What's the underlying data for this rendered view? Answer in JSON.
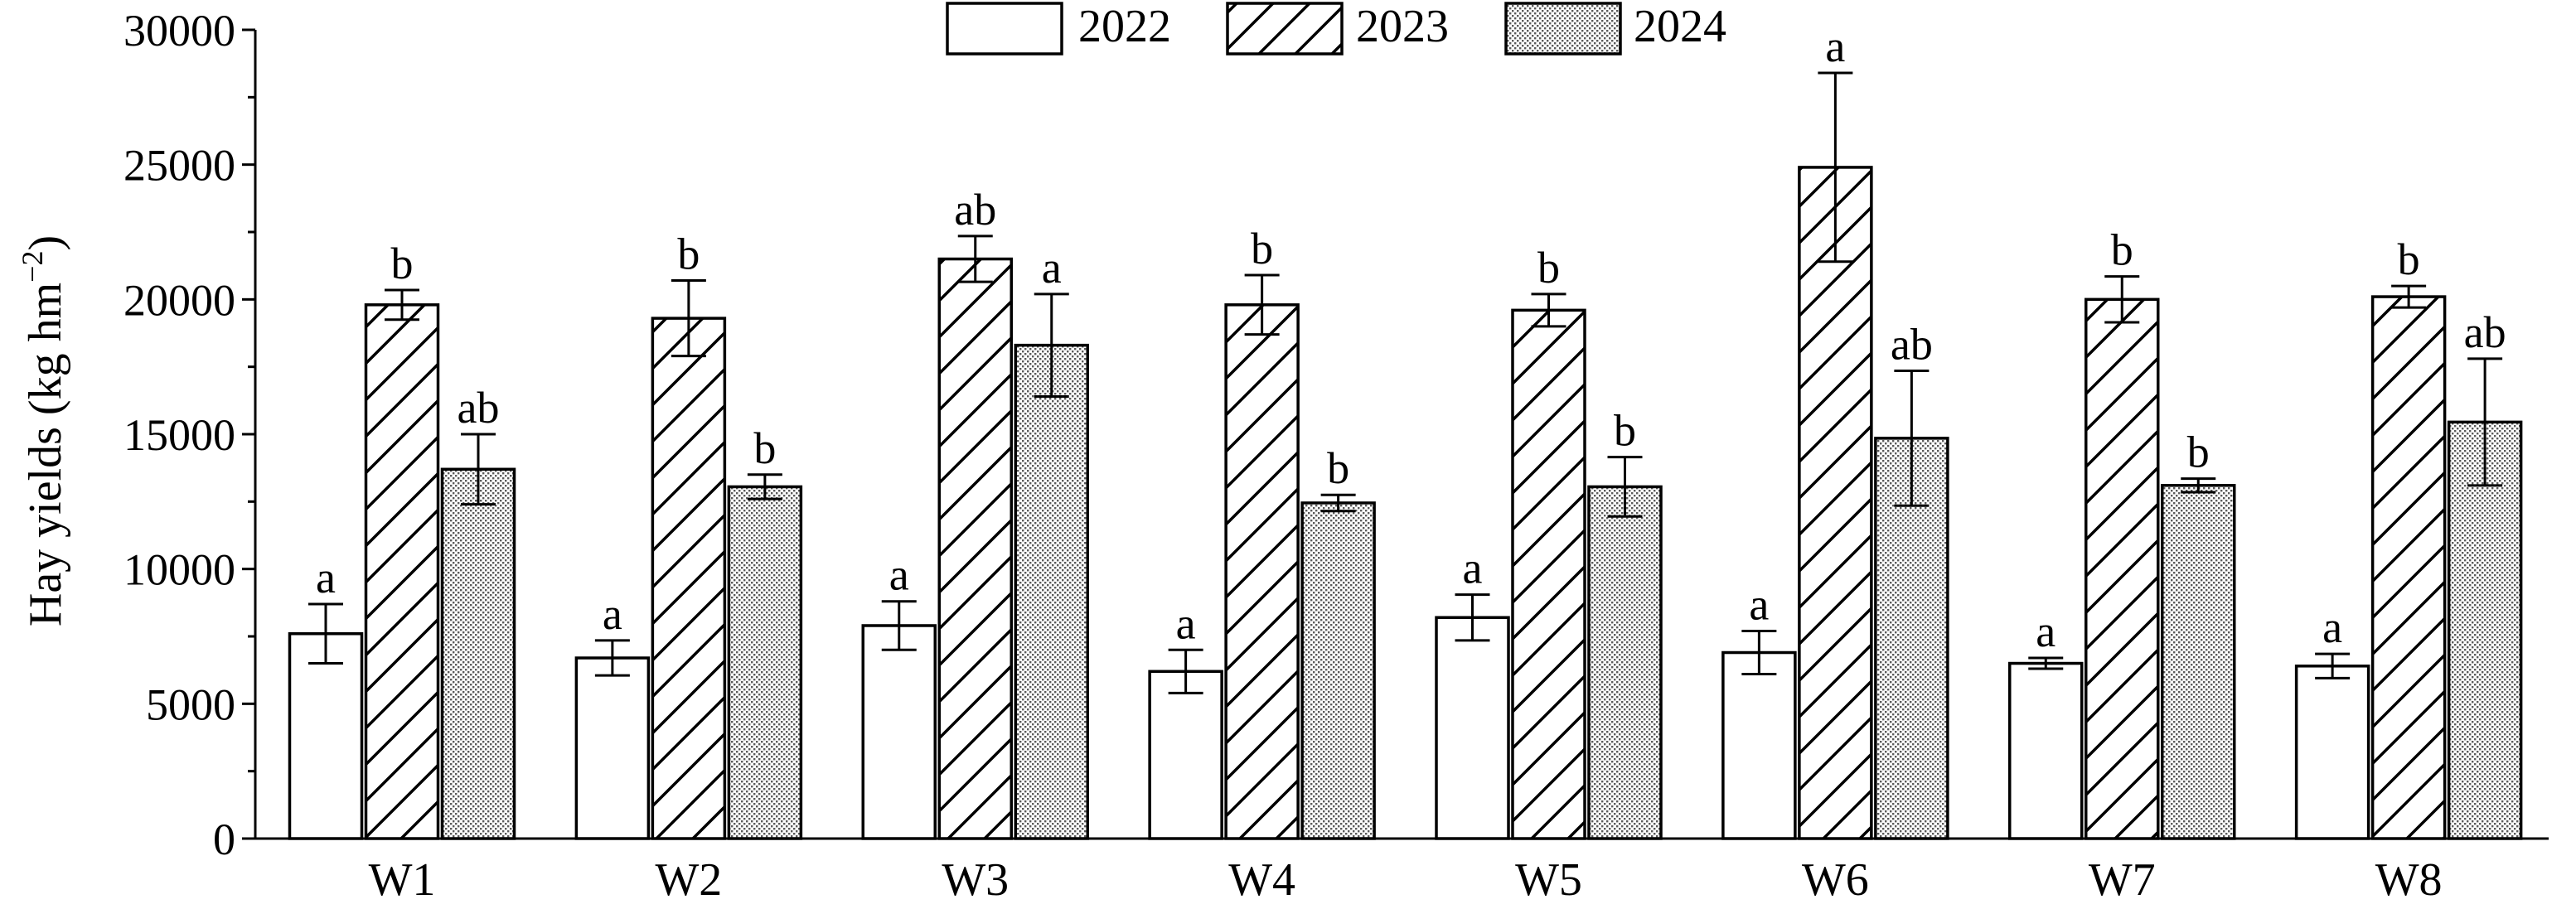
{
  "chart_data": {
    "type": "bar",
    "ylabel": "Hay yields (kg hm",
    "ylabel_sup": "−2",
    "ylabel_close": ")",
    "ylim": [
      0,
      30000
    ],
    "yticks": [
      "0",
      "5000",
      "10000",
      "15000",
      "20000",
      "25000",
      "30000"
    ],
    "ytick_values": [
      0,
      5000,
      10000,
      15000,
      20000,
      25000,
      30000
    ],
    "categories": [
      "W1",
      "W2",
      "W3",
      "W4",
      "W5",
      "W6",
      "W7",
      "W8"
    ],
    "legend_position": "top-center",
    "grid": false,
    "series": [
      {
        "name": "2022",
        "pattern": "empty",
        "values": [
          7600,
          6700,
          7900,
          6200,
          8200,
          6900,
          6500,
          6400
        ],
        "errors": [
          1100,
          650,
          900,
          800,
          850,
          800,
          200,
          450
        ],
        "letters": [
          "a",
          "a",
          "a",
          "a",
          "a",
          "a",
          "a",
          "a"
        ]
      },
      {
        "name": "2023",
        "pattern": "hatch",
        "values": [
          19800,
          19300,
          21500,
          19800,
          19600,
          24900,
          20000,
          20100
        ],
        "errors": [
          550,
          1400,
          850,
          1100,
          600,
          3500,
          850,
          400
        ],
        "letters": [
          "b",
          "b",
          "ab",
          "b",
          "b",
          "a",
          "b",
          "b"
        ]
      },
      {
        "name": "2024",
        "pattern": "dots",
        "values": [
          13700,
          13050,
          18300,
          12450,
          13050,
          14850,
          13100,
          15450
        ],
        "errors": [
          1300,
          450,
          1900,
          300,
          1100,
          2500,
          250,
          2350
        ],
        "letters": [
          "ab",
          "b",
          "a",
          "b",
          "b",
          "ab",
          "b",
          "ab"
        ]
      }
    ]
  }
}
